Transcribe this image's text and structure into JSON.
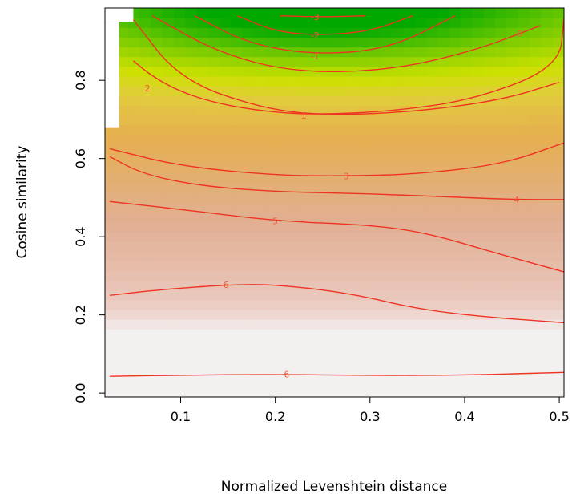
{
  "chart_data": {
    "type": "heatmap",
    "title": "",
    "xlabel": "Normalized Levenshtein distance",
    "ylabel": "Cosine similarity",
    "xlim": [
      0.02,
      0.505
    ],
    "ylim": [
      -0.01,
      0.985
    ],
    "x_ticks": [
      {
        "value": 0.1,
        "label": "0.1"
      },
      {
        "value": 0.2,
        "label": "0.2"
      },
      {
        "value": 0.3,
        "label": "0.3"
      },
      {
        "value": 0.4,
        "label": "0.4"
      },
      {
        "value": 0.5,
        "label": "0.5"
      }
    ],
    "y_ticks": [
      {
        "value": 0.0,
        "label": "0.0"
      },
      {
        "value": 0.2,
        "label": "0.2"
      },
      {
        "value": 0.4,
        "label": "0.4"
      },
      {
        "value": 0.6,
        "label": "0.6"
      },
      {
        "value": 0.8,
        "label": "0.8"
      }
    ],
    "colormap": "terrain (green-yellow-tan-white)",
    "grid": false,
    "masked_region": [
      {
        "x": [
          0.02,
          0.05
        ],
        "y": [
          0.95,
          0.985
        ]
      },
      {
        "x": [
          0.02,
          0.035
        ],
        "y": [
          0.68,
          0.95
        ]
      }
    ],
    "contours": [
      {
        "label": "-3",
        "points": [
          [
            0.205,
            0.965
          ],
          [
            0.25,
            0.962
          ],
          [
            0.295,
            0.965
          ]
        ],
        "label_at": [
          0.242,
          0.962
        ]
      },
      {
        "label": "-2",
        "points": [
          [
            0.16,
            0.965
          ],
          [
            0.2,
            0.925
          ],
          [
            0.245,
            0.915
          ],
          [
            0.3,
            0.925
          ],
          [
            0.345,
            0.965
          ]
        ],
        "label_at": [
          0.242,
          0.915
        ]
      },
      {
        "label": "-1",
        "points": [
          [
            0.115,
            0.965
          ],
          [
            0.17,
            0.895
          ],
          [
            0.24,
            0.865
          ],
          [
            0.32,
            0.88
          ],
          [
            0.39,
            0.965
          ]
        ],
        "label_at": [
          0.242,
          0.862
        ]
      },
      {
        "label": "0",
        "points": [
          [
            0.07,
            0.965
          ],
          [
            0.14,
            0.87
          ],
          [
            0.22,
            0.82
          ],
          [
            0.32,
            0.825
          ],
          [
            0.41,
            0.875
          ],
          [
            0.48,
            0.94
          ]
        ],
        "label_at": [
          0.458,
          0.92
        ]
      },
      {
        "label": "1",
        "points": [
          [
            0.05,
            0.955
          ],
          [
            0.1,
            0.8
          ],
          [
            0.19,
            0.725
          ],
          [
            0.26,
            0.71
          ],
          [
            0.35,
            0.72
          ],
          [
            0.44,
            0.75
          ],
          [
            0.5,
            0.795
          ]
        ],
        "label_at": [
          0.23,
          0.71
        ]
      },
      {
        "label": "2",
        "points": [
          [
            0.05,
            0.85
          ],
          [
            0.07,
            0.81
          ],
          [
            0.1,
            0.77
          ],
          [
            0.14,
            0.74
          ],
          [
            0.19,
            0.72
          ],
          [
            0.24,
            0.712
          ],
          [
            0.32,
            0.72
          ],
          [
            0.41,
            0.75
          ],
          [
            0.5,
            0.835
          ],
          [
            0.505,
            0.96
          ]
        ],
        "label_at": [
          0.065,
          0.78
        ]
      },
      {
        "label": "3",
        "points": [
          [
            0.025,
            0.625
          ],
          [
            0.1,
            0.58
          ],
          [
            0.2,
            0.557
          ],
          [
            0.275,
            0.555
          ],
          [
            0.35,
            0.56
          ],
          [
            0.44,
            0.585
          ],
          [
            0.505,
            0.64
          ]
        ],
        "label_at": [
          0.275,
          0.555
        ]
      },
      {
        "label": "4",
        "points": [
          [
            0.025,
            0.605
          ],
          [
            0.06,
            0.56
          ],
          [
            0.12,
            0.53
          ],
          [
            0.2,
            0.515
          ],
          [
            0.3,
            0.51
          ],
          [
            0.4,
            0.5
          ],
          [
            0.455,
            0.495
          ],
          [
            0.505,
            0.495
          ]
        ],
        "label_at": [
          0.455,
          0.495
        ]
      },
      {
        "label": "5",
        "points": [
          [
            0.025,
            0.49
          ],
          [
            0.1,
            0.47
          ],
          [
            0.2,
            0.44
          ],
          [
            0.3,
            0.43
          ],
          [
            0.36,
            0.41
          ],
          [
            0.43,
            0.36
          ],
          [
            0.505,
            0.31
          ]
        ],
        "label_at": [
          0.2,
          0.44
        ]
      },
      {
        "label": "6",
        "points": [
          [
            0.025,
            0.25
          ],
          [
            0.08,
            0.265
          ],
          [
            0.15,
            0.277
          ],
          [
            0.2,
            0.278
          ],
          [
            0.28,
            0.255
          ],
          [
            0.35,
            0.215
          ],
          [
            0.42,
            0.195
          ],
          [
            0.505,
            0.18
          ]
        ],
        "label_at": [
          0.148,
          0.277
        ]
      },
      {
        "label": "6",
        "points": [
          [
            0.025,
            0.043
          ],
          [
            0.1,
            0.046
          ],
          [
            0.2,
            0.048
          ],
          [
            0.3,
            0.045
          ],
          [
            0.4,
            0.046
          ],
          [
            0.505,
            0.053
          ]
        ],
        "label_at": [
          0.212,
          0.048
        ]
      }
    ]
  }
}
